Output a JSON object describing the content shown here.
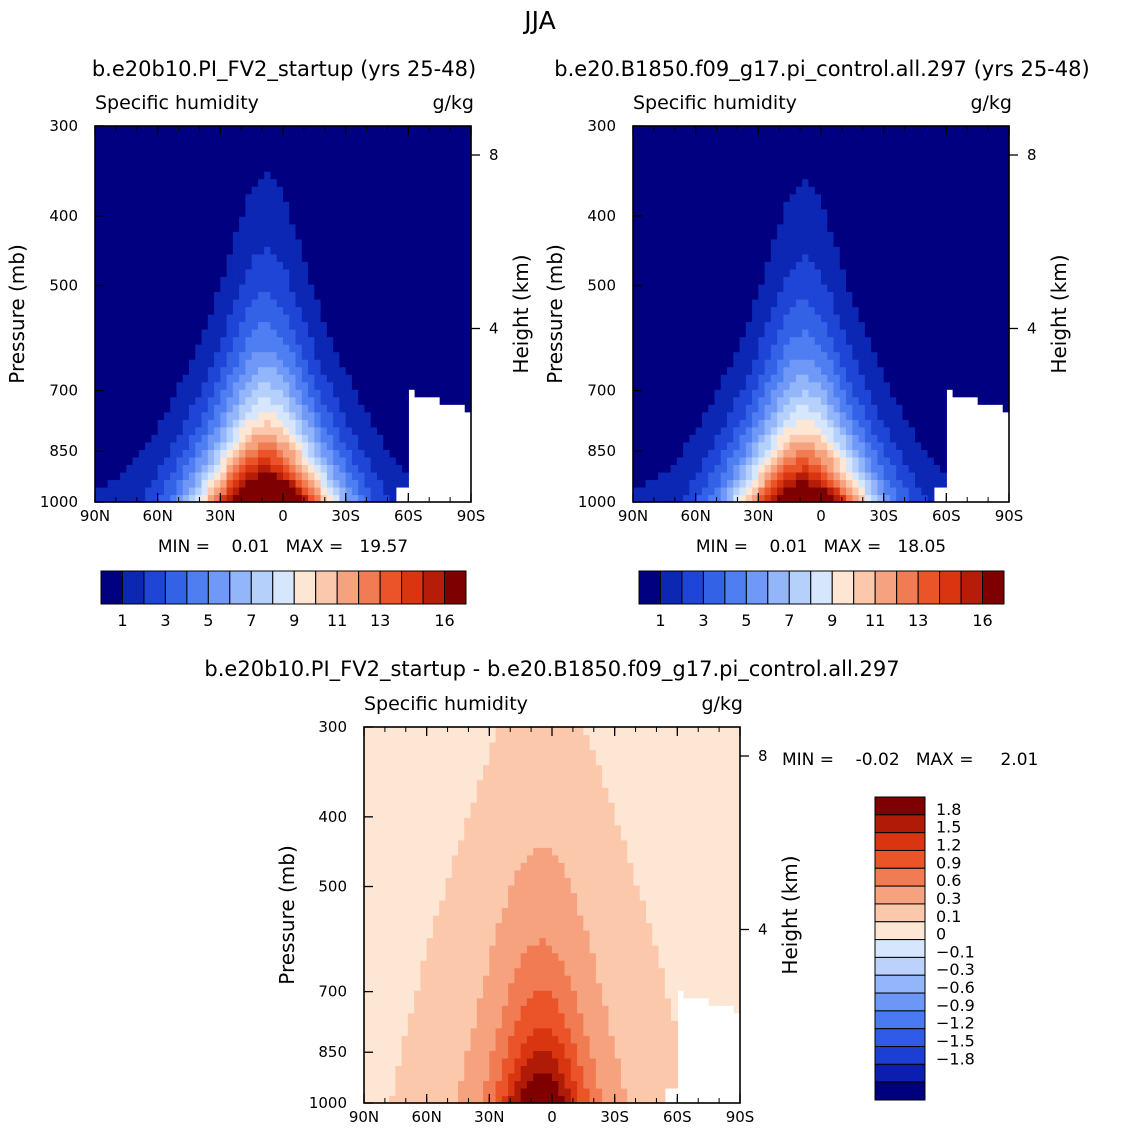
{
  "figure_title": "JJA",
  "colors": {
    "full": [
      "#000080",
      "#0b27b4",
      "#1e45d6",
      "#3462e6",
      "#4f7df2",
      "#6f98f7",
      "#93b6fa",
      "#b6d0fc",
      "#d6e6fd",
      "#fde6d4",
      "#fbc8ab",
      "#f6a27e",
      "#f17b53",
      "#ea5428",
      "#d93511",
      "#b51d08",
      "#7f0000"
    ],
    "diff": [
      "#00007f",
      "#0b1eb0",
      "#1c3fd3",
      "#2f5be6",
      "#4a7af2",
      "#6c97f7",
      "#93b6fa",
      "#bcd2fc",
      "#d6e6fd",
      "#fde6d4",
      "#fbc8ab",
      "#f6a27e",
      "#f17b53",
      "#ea5428",
      "#d93511",
      "#b01b07",
      "#7f0000"
    ]
  },
  "chart_data": [
    {
      "type": "heatmap",
      "panel": "top-left",
      "title": "b.e20b10.PI_FV2_startup (yrs 25-48)",
      "left_string": "Specific humidity",
      "right_string": "g/kg",
      "ylabel": "Pressure (mb)",
      "ylabel_right": "Height (km)",
      "x_ticks": [
        "90N",
        "60N",
        "30N",
        "0",
        "30S",
        "60S",
        "90S"
      ],
      "y_ticks": [
        "300",
        "400",
        "500",
        "700",
        "850",
        "1000"
      ],
      "y_ticks_right": [
        "8",
        "4"
      ],
      "stats": "MIN =    0.01   MAX =   19.57",
      "min": 0.01,
      "max": 19.57,
      "levels": [
        1,
        2,
        3,
        4,
        5,
        6,
        7,
        8,
        9,
        10,
        11,
        12,
        13,
        14,
        15,
        16
      ],
      "colorbar_labels": [
        "1",
        "3",
        "5",
        "7",
        "9",
        "11",
        "13",
        "16"
      ],
      "peak": {
        "lat": 8,
        "pressure": 1000
      }
    },
    {
      "type": "heatmap",
      "panel": "top-right",
      "title": "b.e20.B1850.f09_g17.pi_control.all.297 (yrs 25-48)",
      "left_string": "Specific humidity",
      "right_string": "g/kg",
      "ylabel": "Pressure (mb)",
      "ylabel_right": "Height (km)",
      "x_ticks": [
        "90N",
        "60N",
        "30N",
        "0",
        "30S",
        "60S",
        "90S"
      ],
      "y_ticks": [
        "300",
        "400",
        "500",
        "700",
        "850",
        "1000"
      ],
      "y_ticks_right": [
        "8",
        "4"
      ],
      "stats": "MIN =    0.01   MAX =   18.05",
      "min": 0.01,
      "max": 18.05,
      "levels": [
        1,
        2,
        3,
        4,
        5,
        6,
        7,
        8,
        9,
        10,
        11,
        12,
        13,
        14,
        15,
        16
      ],
      "colorbar_labels": [
        "1",
        "3",
        "5",
        "7",
        "9",
        "11",
        "13",
        "16"
      ],
      "peak": {
        "lat": 8,
        "pressure": 1000
      }
    },
    {
      "type": "heatmap",
      "panel": "bottom",
      "title": "b.e20b10.PI_FV2_startup - b.e20.B1850.f09_g17.pi_control.all.297",
      "left_string": "Specific humidity",
      "right_string": "g/kg",
      "ylabel": "Pressure (mb)",
      "ylabel_right": "Height (km)",
      "x_ticks": [
        "90N",
        "60N",
        "30N",
        "0",
        "30S",
        "60S",
        "90S"
      ],
      "y_ticks": [
        "300",
        "400",
        "500",
        "700",
        "850",
        "1000"
      ],
      "y_ticks_right": [
        "8",
        "4"
      ],
      "stats": "MIN =    -0.02   MAX =     2.01",
      "min": -0.02,
      "max": 2.01,
      "levels": [
        -1.8,
        -1.5,
        -1.2,
        -0.9,
        -0.6,
        -0.3,
        -0.1,
        0,
        0.1,
        0.3,
        0.6,
        0.9,
        1.2,
        1.5,
        1.8
      ],
      "colorbar_labels": [
        "1.8",
        "1.5",
        "1.2",
        "0.9",
        "0.6",
        "0.3",
        "0.1",
        "0",
        "−0.1",
        "−0.3",
        "−0.6",
        "−0.9",
        "−1.2",
        "−1.5",
        "−1.8"
      ]
    }
  ]
}
